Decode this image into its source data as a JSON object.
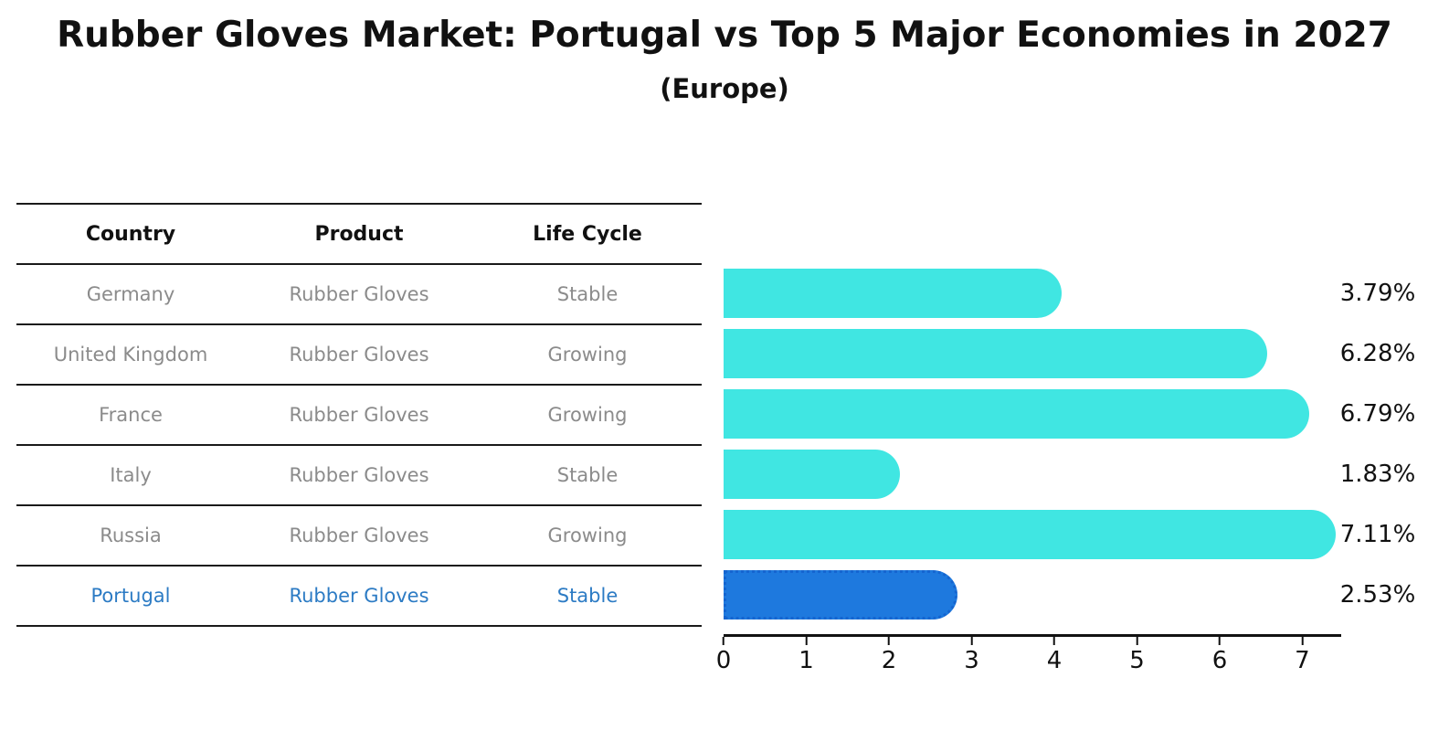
{
  "title": "Rubber Gloves Market: Portugal vs Top 5 Major Economies in 2027",
  "subtitle": "(Europe)",
  "table": {
    "headers": {
      "country": "Country",
      "product": "Product",
      "life_cycle": "Life Cycle"
    },
    "rows": [
      {
        "country": "Germany",
        "product": "Rubber Gloves",
        "life_cycle": "Stable",
        "value_label": "3.79%",
        "highlight": false
      },
      {
        "country": "United Kingdom",
        "product": "Rubber Gloves",
        "life_cycle": "Growing",
        "value_label": "6.28%",
        "highlight": false
      },
      {
        "country": "France",
        "product": "Rubber Gloves",
        "life_cycle": "Growing",
        "value_label": "6.79%",
        "highlight": false
      },
      {
        "country": "Italy",
        "product": "Rubber Gloves",
        "life_cycle": "Stable",
        "value_label": "1.83%",
        "highlight": false
      },
      {
        "country": "Russia",
        "product": "Rubber Gloves",
        "life_cycle": "Growing",
        "value_label": "7.11%",
        "highlight": false
      },
      {
        "country": "Portugal",
        "product": "Rubber Gloves",
        "life_cycle": "Stable",
        "value_label": "2.53%",
        "highlight": true
      }
    ]
  },
  "chart_data": {
    "type": "bar",
    "orientation": "horizontal",
    "title": "Rubber Gloves Market: Portugal vs Top 5 Major Economies in 2027 (Europe)",
    "categories": [
      "Germany",
      "United Kingdom",
      "France",
      "Italy",
      "Russia",
      "Portugal"
    ],
    "values": [
      3.79,
      6.28,
      6.79,
      1.83,
      7.11,
      2.53
    ],
    "value_labels": [
      "3.79%",
      "6.28%",
      "6.79%",
      "1.83%",
      "7.11%",
      "2.53%"
    ],
    "x_ticks": [
      "0",
      "1",
      "2",
      "3",
      "4",
      "5",
      "6",
      "7"
    ],
    "xlim": [
      0,
      7.47
    ],
    "grid": false,
    "legend": false,
    "highlight_index": 5,
    "bar_color": "#40E6E2",
    "highlight_bar_color": "#1e79de",
    "highlight_border_color": "#1565d0",
    "highlight_text_color": "#2c7bc4",
    "row_text_color": "#8b8b8b",
    "axis_color": "#111111"
  }
}
